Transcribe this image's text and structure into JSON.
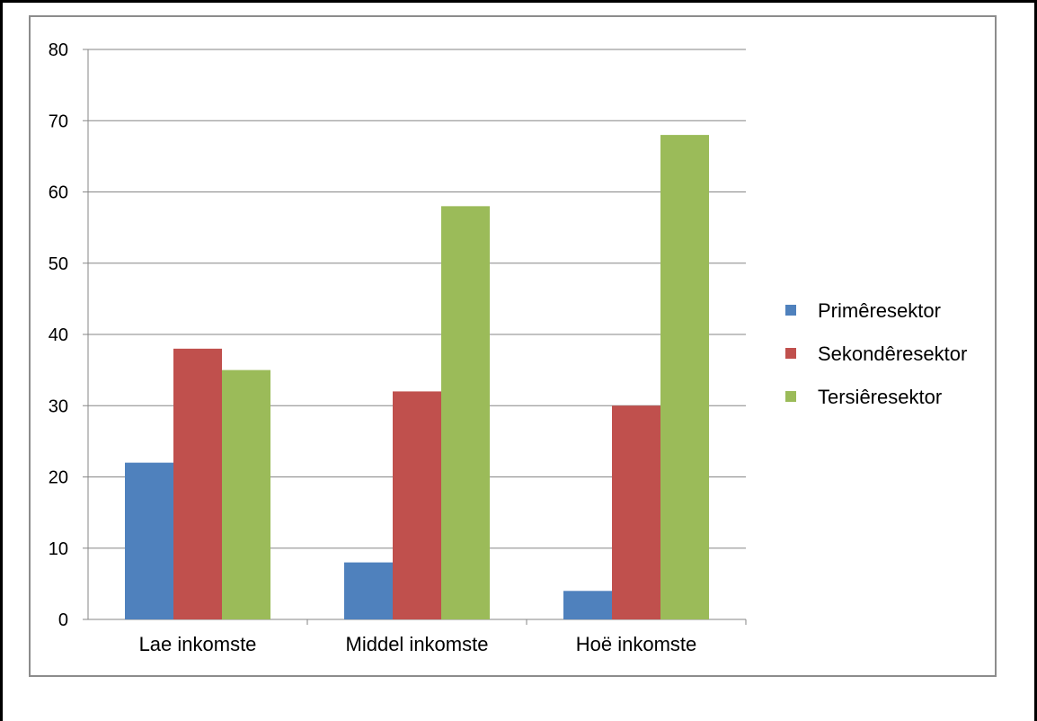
{
  "chart_data": {
    "type": "bar",
    "categories": [
      "Lae inkomste",
      "Middel inkomste",
      "Hoë inkomste"
    ],
    "series": [
      {
        "name": "Primêresektor",
        "values": [
          22,
          8,
          4
        ],
        "color": "#4f81bd"
      },
      {
        "name": "Sekondêresektor",
        "values": [
          38,
          32,
          30
        ],
        "color": "#c0504d"
      },
      {
        "name": "Tersiêresektor",
        "values": [
          35,
          58,
          68
        ],
        "color": "#9bbb59"
      }
    ],
    "yticks": [
      "0",
      "10",
      "20",
      "30",
      "40",
      "50",
      "60",
      "70",
      "80"
    ],
    "ylim": [
      0,
      80
    ],
    "grid": true,
    "legend": "right",
    "colors": {
      "gridline": "#868686",
      "axis": "#868686",
      "frame": "#8c8c8c"
    }
  }
}
